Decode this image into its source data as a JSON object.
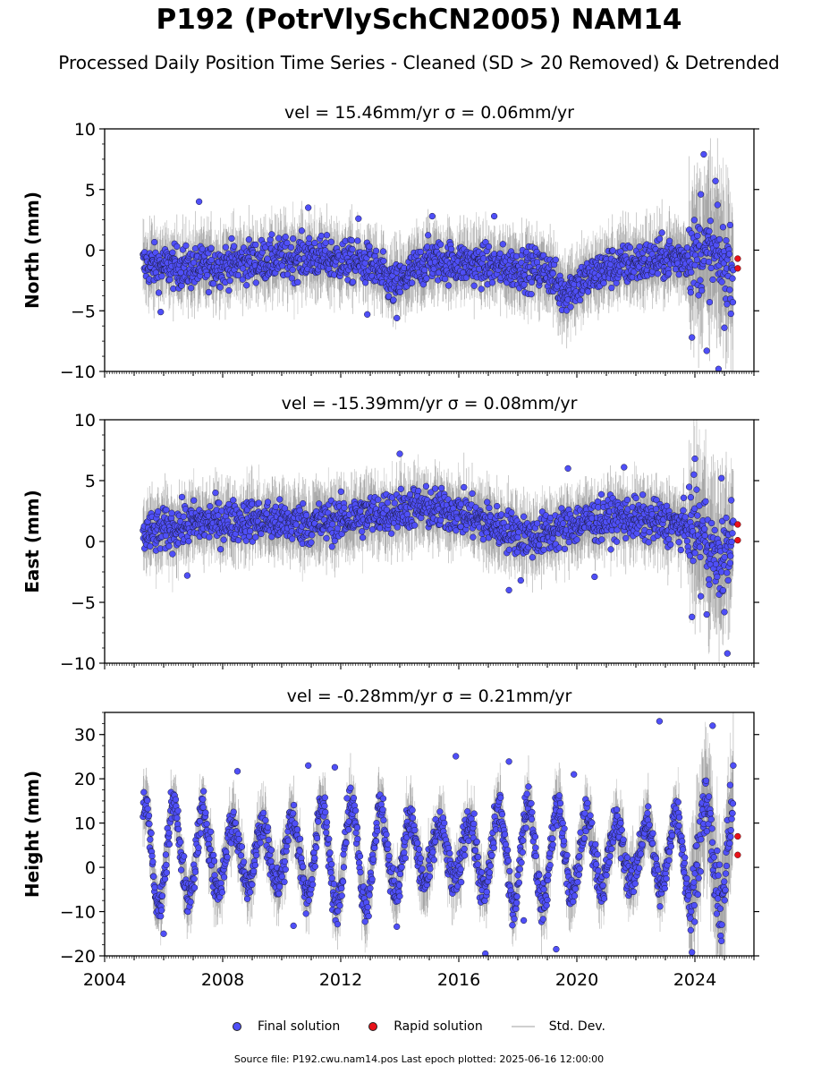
{
  "title": "P192 (PotrVlySchCN2005) NAM14",
  "subtitle": "Processed Daily Position Time Series - Cleaned (SD > 20 Removed) & Detrended",
  "legend": {
    "final": "Final solution",
    "rapid": "Rapid solution",
    "sd": "Std. Dev."
  },
  "source": "Source file: P192.cwu.nam14.pos  Last epoch plotted: 2025-06-16 12:00:00",
  "colors": {
    "final": "#4f4ff7",
    "rapid": "#e8121a",
    "sd": "#b0b0b0",
    "dark_sd": "#444444"
  },
  "chart_data": [
    {
      "type": "scatter",
      "panel_title": "vel = 15.46mm/yr   σ = 0.06mm/yr",
      "ylabel": "North (mm)",
      "xlim": [
        2004.0,
        2026.0
      ],
      "ylim": [
        -10,
        10
      ],
      "yticks": [
        -10,
        -5,
        0,
        5,
        10
      ],
      "xticks": [],
      "series": [
        {
          "name": "Final solution",
          "values_trend": [
            [
              2005.3,
              -1.2
            ],
            [
              2007.0,
              -1.5
            ],
            [
              2009.0,
              -0.9
            ],
            [
              2011.0,
              -0.5
            ],
            [
              2013.0,
              -1.2
            ],
            [
              2013.8,
              -3.0
            ],
            [
              2015.0,
              -0.8
            ],
            [
              2017.0,
              -1.3
            ],
            [
              2019.0,
              -1.6
            ],
            [
              2019.5,
              -3.5
            ],
            [
              2021.0,
              -1.5
            ],
            [
              2023.0,
              -0.7
            ],
            [
              2024.5,
              -0.3
            ],
            [
              2025.3,
              -1.5
            ]
          ],
          "x_start": 2005.3,
          "x_end": 2025.3,
          "spread": 2.2
        },
        {
          "name": "Rapid solution",
          "points": [
            [
              2025.45,
              -0.7
            ],
            [
              2025.45,
              -1.5
            ]
          ]
        }
      ],
      "outliers": [
        [
          2007.2,
          4.0
        ],
        [
          2010.9,
          3.5
        ],
        [
          2012.6,
          2.6
        ],
        [
          2015.1,
          2.8
        ],
        [
          2017.2,
          2.8
        ],
        [
          2023.9,
          -7.2
        ],
        [
          2024.3,
          7.9
        ],
        [
          2024.7,
          5.7
        ],
        [
          2024.4,
          -8.3
        ],
        [
          2024.8,
          -9.8
        ],
        [
          2024.2,
          4.6
        ],
        [
          2025.0,
          -6.4
        ],
        [
          2005.9,
          -5.1
        ],
        [
          2012.9,
          -5.3
        ],
        [
          2013.9,
          -5.6
        ]
      ]
    },
    {
      "type": "scatter",
      "panel_title": "vel = -15.39mm/yr   σ = 0.08mm/yr",
      "ylabel": "East (mm)",
      "xlim": [
        2004.0,
        2026.0
      ],
      "ylim": [
        -10,
        10
      ],
      "yticks": [
        -10,
        -5,
        0,
        5,
        10
      ],
      "xticks": [],
      "series": [
        {
          "name": "Final solution",
          "values_trend": [
            [
              2005.3,
              0.5
            ],
            [
              2007.0,
              1.5
            ],
            [
              2009.0,
              1.8
            ],
            [
              2011.0,
              1.4
            ],
            [
              2013.0,
              2.2
            ],
            [
              2014.5,
              2.8
            ],
            [
              2016.0,
              2.4
            ],
            [
              2017.5,
              1.0
            ],
            [
              2018.5,
              0.3
            ],
            [
              2020.0,
              1.5
            ],
            [
              2021.5,
              2.0
            ],
            [
              2023.0,
              1.5
            ],
            [
              2024.3,
              0.8
            ],
            [
              2024.8,
              -2.0
            ],
            [
              2025.3,
              0.5
            ]
          ],
          "x_start": 2005.3,
          "x_end": 2025.3,
          "spread": 2.2
        },
        {
          "name": "Rapid solution",
          "points": [
            [
              2025.45,
              1.4
            ],
            [
              2025.45,
              0.1
            ]
          ]
        }
      ],
      "outliers": [
        [
          2014.0,
          7.2
        ],
        [
          2021.6,
          6.1
        ],
        [
          2024.0,
          6.8
        ],
        [
          2019.7,
          6.0
        ],
        [
          2024.9,
          5.2
        ],
        [
          2017.7,
          -4.0
        ],
        [
          2023.9,
          -6.2
        ],
        [
          2024.4,
          -6.0
        ],
        [
          2025.0,
          -5.8
        ],
        [
          2025.1,
          -9.2
        ],
        [
          2006.8,
          -2.8
        ],
        [
          2018.1,
          -3.2
        ],
        [
          2020.6,
          -2.9
        ],
        [
          2024.2,
          -4.5
        ]
      ]
    },
    {
      "type": "scatter",
      "panel_title": "vel = -0.28mm/yr   σ = 0.21mm/yr",
      "ylabel": "Height (mm)",
      "xlim": [
        2004.0,
        2026.0
      ],
      "ylim": [
        -20,
        35
      ],
      "yticks": [
        -20,
        -10,
        0,
        10,
        20,
        30
      ],
      "xticks": [
        2004,
        2008,
        2012,
        2016,
        2020,
        2024
      ],
      "series": [
        {
          "name": "Final solution",
          "annual_amplitude": 9,
          "mean": 3,
          "x_start": 2005.3,
          "x_end": 2025.3,
          "spread": 5.5
        },
        {
          "name": "Rapid solution",
          "points": [
            [
              2025.45,
              7.0
            ],
            [
              2025.45,
              2.8
            ]
          ]
        }
      ],
      "outliers": [
        [
          2022.8,
          33.0
        ],
        [
          2024.6,
          32.0
        ],
        [
          2015.9,
          25.1
        ],
        [
          2017.7,
          23.9
        ],
        [
          2008.5,
          21.7
        ],
        [
          2011.8,
          22.6
        ],
        [
          2010.9,
          23.0
        ],
        [
          2019.9,
          21.0
        ],
        [
          2013.9,
          -13.4
        ],
        [
          2023.9,
          -19.2
        ],
        [
          2018.2,
          -12.0
        ],
        [
          2006.0,
          -15.0
        ],
        [
          2016.9,
          -19.5
        ],
        [
          2019.3,
          -18.5
        ],
        [
          2010.4,
          -13.2
        ]
      ]
    }
  ]
}
